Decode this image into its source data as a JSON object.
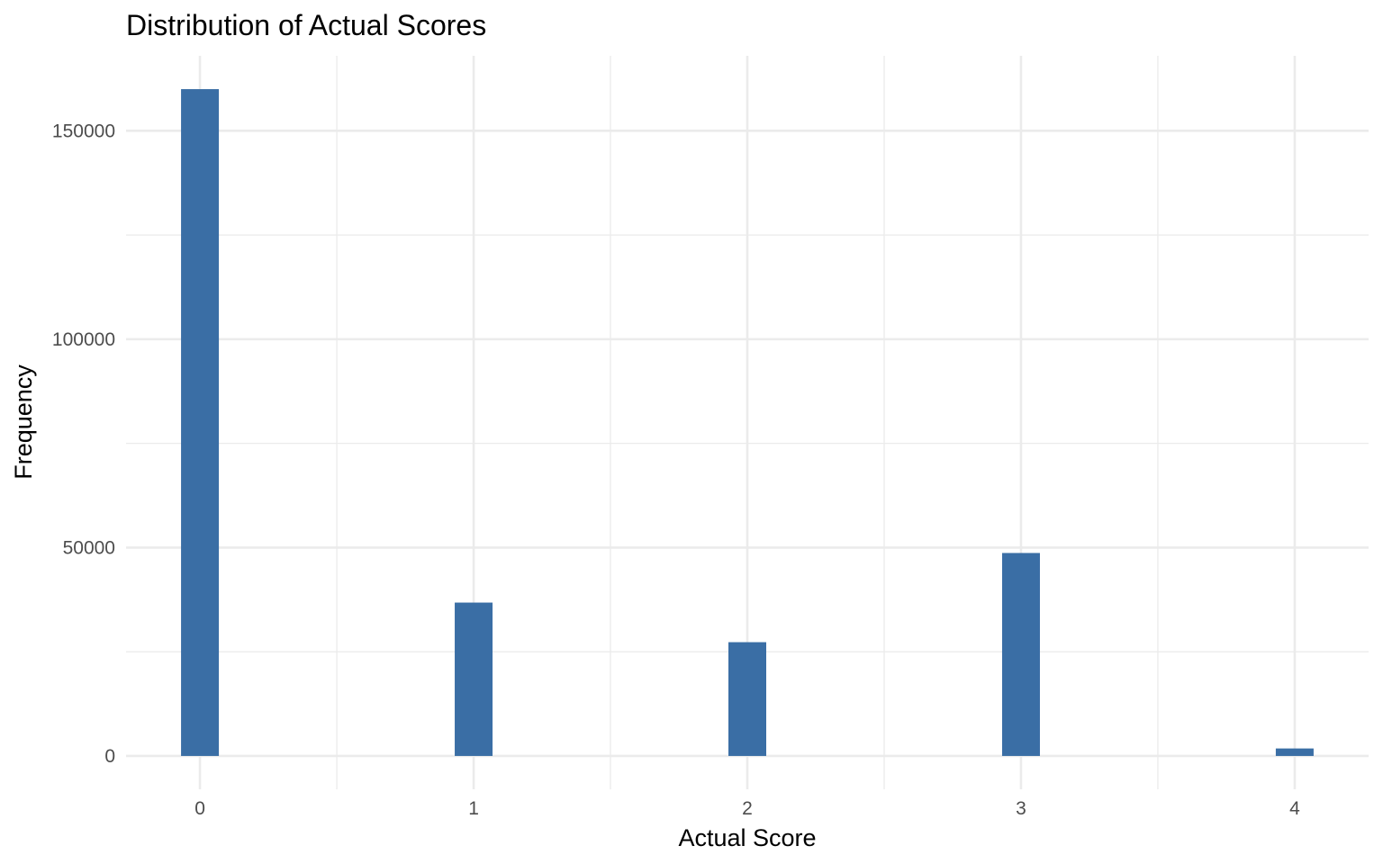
{
  "chart_data": {
    "type": "bar",
    "title": "Distribution of Actual Scores",
    "xlabel": "Actual Score",
    "ylabel": "Frequency",
    "x_ticks": [
      "0",
      "1",
      "2",
      "3",
      "4"
    ],
    "y_ticks": [
      "0",
      "50000",
      "100000",
      "150000"
    ],
    "bars": [
      {
        "x": 0,
        "value": 160000
      },
      {
        "x": 1,
        "value": 36800
      },
      {
        "x": 2,
        "value": 27300
      },
      {
        "x": 3,
        "value": 48700
      },
      {
        "x": 4,
        "value": 1800
      }
    ],
    "xlim": [
      -0.27,
      4.27
    ],
    "ylim": [
      -8000,
      168000
    ],
    "bar_color": "#3a6ea5",
    "grid": true
  }
}
